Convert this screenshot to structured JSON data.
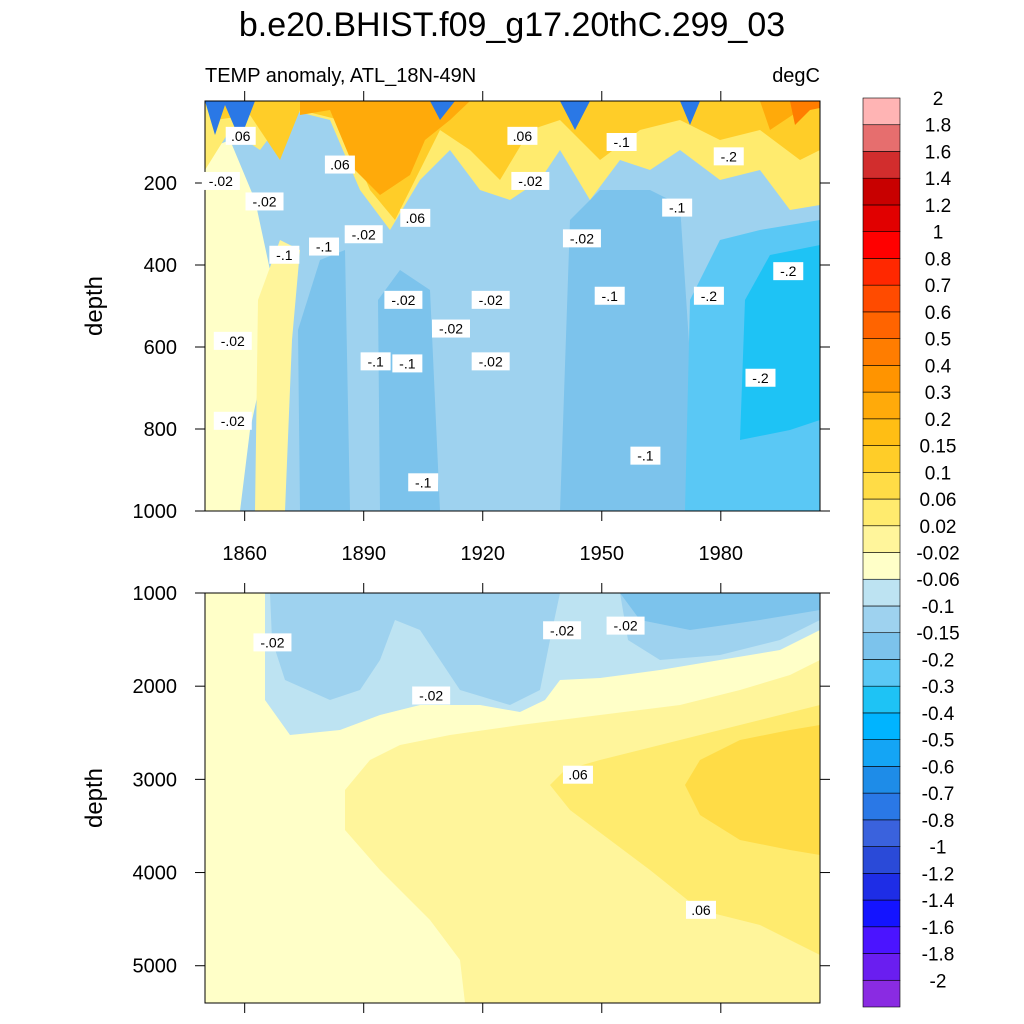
{
  "chart_data": {
    "type": "heatmap",
    "title": "b.e20.BHIST.f09_g17.20thC.299_03",
    "subtitle_left": "TEMP anomaly, ATL_18N-49N",
    "subtitle_right": "degC",
    "x_ticks": [
      1860,
      1890,
      1920,
      1950,
      1980
    ],
    "xlim": [
      1850,
      2005
    ],
    "panels": [
      {
        "name": "upper",
        "ylabel": "depth",
        "ylim": [
          0,
          1000
        ],
        "y_ticks": [
          200,
          400,
          600,
          800,
          1000
        ],
        "contour_labels": [
          {
            "text": ".06",
            "x": 1859,
            "y": 85
          },
          {
            "text": "-.02",
            "x": 1854,
            "y": 195
          },
          {
            "text": "-.02",
            "x": 1865,
            "y": 245
          },
          {
            "text": ".06",
            "x": 1884,
            "y": 155
          },
          {
            "text": "-.1",
            "x": 1870,
            "y": 375
          },
          {
            "text": "-.1",
            "x": 1880,
            "y": 355
          },
          {
            "text": "-.02",
            "x": 1890,
            "y": 325
          },
          {
            "text": ".06",
            "x": 1903,
            "y": 285
          },
          {
            "text": "-.02",
            "x": 1900,
            "y": 485
          },
          {
            "text": "-.02",
            "x": 1912,
            "y": 555
          },
          {
            "text": "-.02",
            "x": 1922,
            "y": 485
          },
          {
            "text": "-.02",
            "x": 1922,
            "y": 635
          },
          {
            "text": ".06",
            "x": 1930,
            "y": 85
          },
          {
            "text": "-.02",
            "x": 1932,
            "y": 195
          },
          {
            "text": "-.02",
            "x": 1945,
            "y": 335
          },
          {
            "text": "-.1",
            "x": 1952,
            "y": 475
          },
          {
            "text": "-.1",
            "x": 1955,
            "y": 100
          },
          {
            "text": "-.1",
            "x": 1969,
            "y": 260
          },
          {
            "text": "-.2",
            "x": 1982,
            "y": 135
          },
          {
            "text": "-.2",
            "x": 1977,
            "y": 475
          },
          {
            "text": "-.2",
            "x": 1997,
            "y": 415
          },
          {
            "text": "-.2",
            "x": 1990,
            "y": 675
          },
          {
            "text": "-.1",
            "x": 1961,
            "y": 865
          },
          {
            "text": "-.1",
            "x": 1893,
            "y": 635
          },
          {
            "text": "-.1",
            "x": 1901,
            "y": 640
          },
          {
            "text": "-.02",
            "x": 1857,
            "y": 585
          },
          {
            "text": "-.02",
            "x": 1857,
            "y": 780
          },
          {
            "text": "-.1",
            "x": 1905,
            "y": 930
          }
        ]
      },
      {
        "name": "lower",
        "ylabel": "depth",
        "ylim": [
          1000,
          5400
        ],
        "y_ticks": [
          1000,
          2000,
          3000,
          4000,
          5000
        ],
        "contour_labels": [
          {
            "text": "-.02",
            "x": 1867,
            "y": 1530
          },
          {
            "text": "-.02",
            "x": 1907,
            "y": 2100
          },
          {
            "text": "-.02",
            "x": 1940,
            "y": 1400
          },
          {
            "text": "-.02",
            "x": 1956,
            "y": 1350
          },
          {
            "text": ".06",
            "x": 1944,
            "y": 2950
          },
          {
            "text": ".06",
            "x": 1975,
            "y": 4400
          }
        ]
      }
    ],
    "colorbar": {
      "colors": [
        "#8a2be2",
        "#6a1ef0",
        "#4b14ff",
        "#1414ff",
        "#1e2de6",
        "#2a4ad8",
        "#3a62dd",
        "#2a78e6",
        "#1e8ce8",
        "#14a5f5",
        "#00b4ff",
        "#1ec3f5",
        "#5ac8f5",
        "#7cc3ec",
        "#9ed2ef",
        "#bde3f2",
        "#ffffc8",
        "#fff59b",
        "#ffeb6e",
        "#ffdc46",
        "#ffcd28",
        "#ffbe14",
        "#ffaa0a",
        "#ff9400",
        "#ff7d00",
        "#ff6400",
        "#ff4b00",
        "#ff2800",
        "#ff0000",
        "#e10000",
        "#c80000",
        "#d22d2d",
        "#e66e6e",
        "#ffb4b4"
      ],
      "labels": [
        "-2",
        "-1.8",
        "-1.6",
        "-1.4",
        "-1.2",
        "-1",
        "-0.8",
        "-0.7",
        "-0.6",
        "-0.5",
        "-0.4",
        "-0.3",
        "-0.2",
        "-0.15",
        "-0.1",
        "-0.06",
        "-0.02",
        "0.02",
        "0.06",
        "0.1",
        "0.15",
        "0.2",
        "0.3",
        "0.4",
        "0.5",
        "0.6",
        "0.7",
        "0.8",
        "1",
        "1.2",
        "1.4",
        "1.6",
        "1.8",
        "2"
      ]
    }
  }
}
